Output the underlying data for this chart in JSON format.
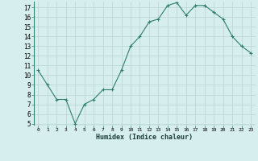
{
  "x": [
    0,
    1,
    2,
    3,
    4,
    5,
    6,
    7,
    8,
    9,
    10,
    11,
    12,
    13,
    14,
    15,
    16,
    17,
    18,
    19,
    20,
    21,
    22,
    23
  ],
  "y": [
    10.5,
    9.0,
    7.5,
    7.5,
    5.0,
    7.0,
    7.5,
    8.5,
    8.5,
    10.5,
    13.0,
    14.0,
    15.5,
    15.8,
    17.2,
    17.5,
    16.2,
    17.2,
    17.2,
    16.5,
    15.8,
    14.0,
    13.0,
    12.3
  ],
  "xlabel": "Humidex (Indice chaleur)",
  "line_color": "#2e7d6e",
  "marker": "+",
  "bg_color": "#d6eeee",
  "grid_color": "#b8d4d4",
  "ylim": [
    4.8,
    17.6
  ],
  "xlim": [
    -0.5,
    23.5
  ],
  "yticks": [
    5,
    6,
    7,
    8,
    9,
    10,
    11,
    12,
    13,
    14,
    15,
    16,
    17
  ],
  "xticks": [
    0,
    1,
    2,
    3,
    4,
    5,
    6,
    7,
    8,
    9,
    10,
    11,
    12,
    13,
    14,
    15,
    16,
    17,
    18,
    19,
    20,
    21,
    22,
    23
  ]
}
